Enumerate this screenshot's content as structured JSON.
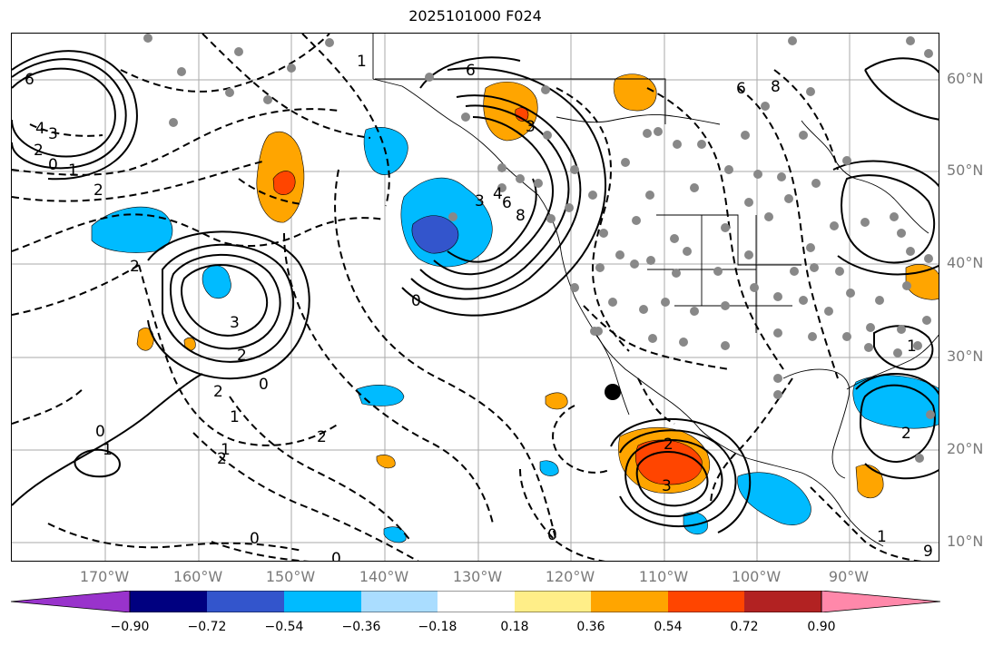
{
  "title": "2025101000 F024",
  "lat_labels": [
    "60°N",
    "50°N",
    "40°N",
    "30°N",
    "20°N",
    "10°N"
  ],
  "lon_labels": [
    "170°W",
    "160°W",
    "150°W",
    "140°W",
    "130°W",
    "120°W",
    "110°W",
    "100°W",
    "90°W"
  ],
  "colorbar": {
    "ticks": [
      "−0.90",
      "−0.72",
      "−0.54",
      "−0.36",
      "−0.18",
      "0.18",
      "0.36",
      "0.54",
      "0.72",
      "0.90"
    ],
    "colors": [
      "#9933cc",
      "#000080",
      "#3355cc",
      "#00bbff",
      "#aaddff",
      "#ffffff",
      "#ffee88",
      "#ffa500",
      "#ff4500",
      "#b22222",
      "#ff88aa"
    ]
  },
  "contour_labels": [
    "6",
    "4",
    "3",
    "2",
    "1",
    "0",
    "1",
    "2",
    "6",
    "3",
    "4",
    "6",
    "8",
    "3",
    "6",
    "8",
    "0",
    "1",
    "2",
    "3",
    "2",
    "2",
    "0",
    "2",
    "1",
    "2",
    "1",
    "0",
    "0",
    "0",
    "2",
    "3",
    "1",
    "0",
    "2",
    "1",
    "9"
  ]
}
